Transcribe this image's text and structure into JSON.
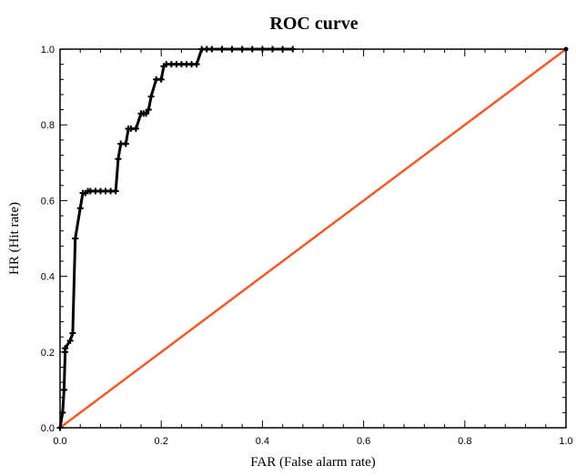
{
  "chart_data": {
    "type": "line",
    "title": "ROC curve",
    "xlabel": "FAR (False alarm rate)",
    "ylabel": "HR (Hit rate)",
    "xlim": [
      0.0,
      1.0
    ],
    "ylim": [
      0.0,
      1.0
    ],
    "xticks": [
      "0.0",
      "0.2",
      "0.4",
      "0.6",
      "0.8",
      "1.0"
    ],
    "yticks": [
      "0.0",
      "0.2",
      "0.4",
      "0.6",
      "0.8",
      "1.0"
    ],
    "grid": false,
    "legend": "none",
    "series": [
      {
        "color": "#000000",
        "marker": "plus",
        "x": [
          0.0,
          0.0,
          0.005,
          0.008,
          0.01,
          0.01,
          0.02,
          0.025,
          0.03,
          0.03,
          0.04,
          0.045,
          0.05,
          0.055,
          0.06,
          0.07,
          0.08,
          0.09,
          0.1,
          0.11,
          0.115,
          0.12,
          0.13,
          0.135,
          0.14,
          0.15,
          0.16,
          0.165,
          0.17,
          0.175,
          0.18,
          0.19,
          0.2,
          0.205,
          0.21,
          0.22,
          0.23,
          0.24,
          0.25,
          0.26,
          0.27,
          0.28,
          0.29,
          0.3,
          0.32,
          0.34,
          0.36,
          0.38,
          0.4,
          0.42,
          0.44,
          0.46
        ],
        "y": [
          0.0,
          0.0,
          0.04,
          0.1,
          0.2,
          0.21,
          0.23,
          0.25,
          0.5,
          0.5,
          0.58,
          0.62,
          0.62,
          0.625,
          0.625,
          0.625,
          0.625,
          0.625,
          0.625,
          0.625,
          0.71,
          0.75,
          0.75,
          0.79,
          0.79,
          0.79,
          0.83,
          0.83,
          0.83,
          0.84,
          0.875,
          0.92,
          0.92,
          0.955,
          0.96,
          0.96,
          0.96,
          0.96,
          0.96,
          0.96,
          0.96,
          1.0,
          1.0,
          1.0,
          1.0,
          1.0,
          1.0,
          1.0,
          1.0,
          1.0,
          1.0,
          1.0
        ]
      },
      {
        "color": "#f05a2a",
        "marker": "none",
        "x": [
          0.0,
          1.0
        ],
        "y": [
          0.0,
          1.0
        ]
      }
    ]
  }
}
